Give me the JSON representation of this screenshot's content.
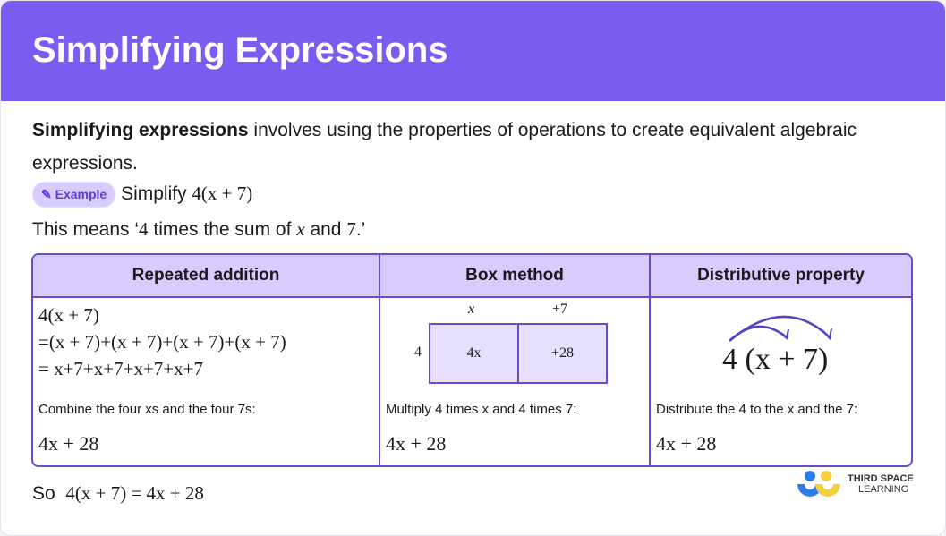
{
  "title": "Simplifying Expressions",
  "intro": {
    "bold": "Simplifying expressions",
    "rest": " involves using the properties of operations to create equivalent algebraic expressions."
  },
  "example": {
    "badge": "Example",
    "text": "Simplify ",
    "expr": "4(x + 7)"
  },
  "meaning": {
    "a": "This means ‘",
    "b": "4",
    "c": " times the sum of ",
    "d": "x",
    "e": " and ",
    "f": "7",
    "g": ".’"
  },
  "table": {
    "headers": [
      "Repeated addition",
      "Box method",
      "Distributive property"
    ],
    "repeated": {
      "lines": [
        "4(x + 7)",
        "=(x + 7)+(x + 7)+(x + 7)+(x + 7)",
        "= x+7+x+7+x+7+x+7"
      ],
      "note": "Combine the four xs and the four 7s:",
      "answer": "4x + 28"
    },
    "box": {
      "col_labels": [
        "x",
        "+7"
      ],
      "row_label": "4",
      "cells": [
        "4x",
        "+28"
      ],
      "note": "Multiply 4 times x and 4 times 7:",
      "answer": "4x + 28"
    },
    "distributive": {
      "expr": "4 (x + 7)",
      "note": "Distribute the 4 to the x and the 7:",
      "answer": "4x + 28"
    }
  },
  "conclusion": {
    "so": "So",
    "expr": "4(x + 7) = 4x + 28"
  },
  "logo": {
    "line1": "THIRD SPACE",
    "line2": "LEARNING"
  },
  "colors": {
    "header": "#7b5cf0",
    "accent": "#6a4bc8",
    "table_header": "#d8ccff"
  }
}
